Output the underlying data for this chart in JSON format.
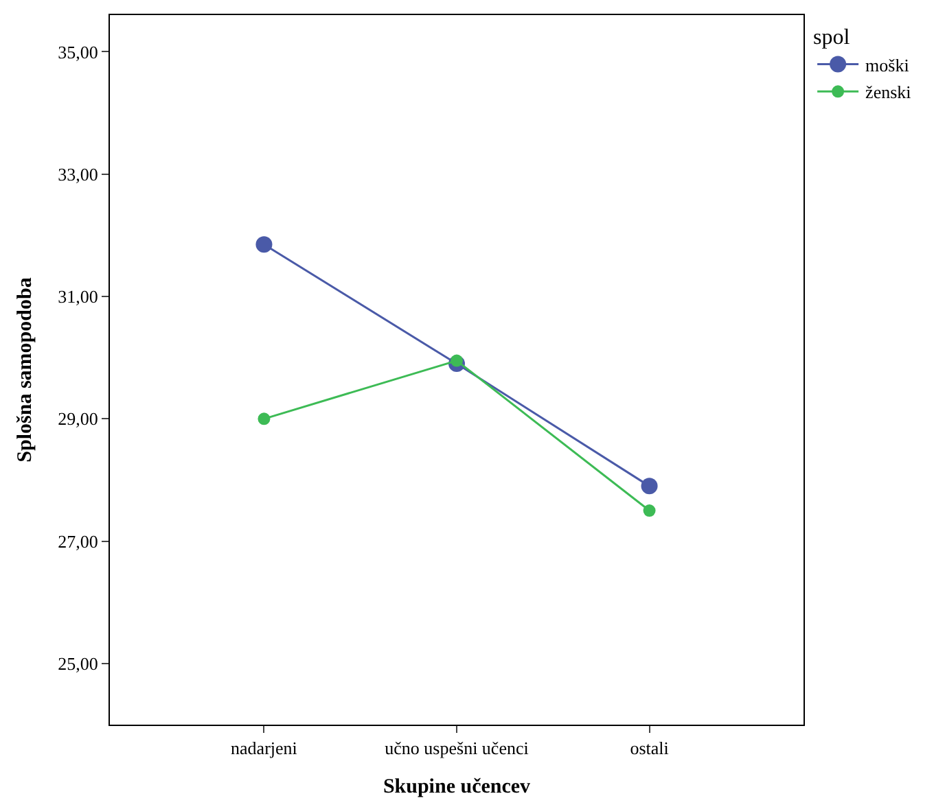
{
  "chart_data": {
    "type": "line",
    "xlabel": "Skupine učencev",
    "ylabel": "Splošna samopodoba",
    "legend_title": "spol",
    "categories": [
      "nadarjeni",
      "učno uspešni učenci",
      "ostali"
    ],
    "series": [
      {
        "name": "moški",
        "color": "#4a5aa8",
        "values": [
          31.85,
          29.9,
          27.9
        ]
      },
      {
        "name": "ženski",
        "color": "#3dbb55",
        "values": [
          29.0,
          29.95,
          27.5
        ]
      }
    ],
    "ylim": [
      24.0,
      35.6
    ],
    "yticks": [
      {
        "value": 25,
        "label": "25,00"
      },
      {
        "value": 27,
        "label": "27,00"
      },
      {
        "value": 29,
        "label": "29,00"
      },
      {
        "value": 31,
        "label": "31,00"
      },
      {
        "value": 33,
        "label": "33,00"
      },
      {
        "value": 35,
        "label": "35,00"
      }
    ],
    "grid": false,
    "legend": "top right",
    "marker": "circle",
    "line_style": "solid"
  }
}
